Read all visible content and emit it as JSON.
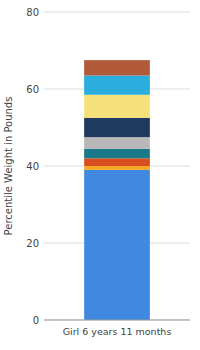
{
  "chart_data": {
    "type": "bar",
    "stacked": true,
    "categories": [
      "Girl 6 years 11 months"
    ],
    "ylabel": "Percentile Weight in Pounds",
    "series": [
      {
        "color": "#4189E0",
        "values": [
          39.0
        ]
      },
      {
        "color": "#F5A623",
        "values": [
          1.0
        ]
      },
      {
        "color": "#D94E1F",
        "values": [
          2.0
        ]
      },
      {
        "color": "#1A7A8A",
        "values": [
          2.5
        ]
      },
      {
        "color": "#B8B8B8",
        "values": [
          3.0
        ]
      },
      {
        "color": "#1E3A5F",
        "values": [
          5.0
        ]
      },
      {
        "color": "#F5E17A",
        "values": [
          6.0
        ]
      },
      {
        "color": "#29AEDE",
        "values": [
          5.0
        ]
      },
      {
        "color": "#B05A3A",
        "values": [
          4.0
        ]
      }
    ],
    "ylim": [
      0,
      80
    ],
    "yticks": [
      0,
      20,
      40,
      60,
      80
    ],
    "grid": true
  }
}
